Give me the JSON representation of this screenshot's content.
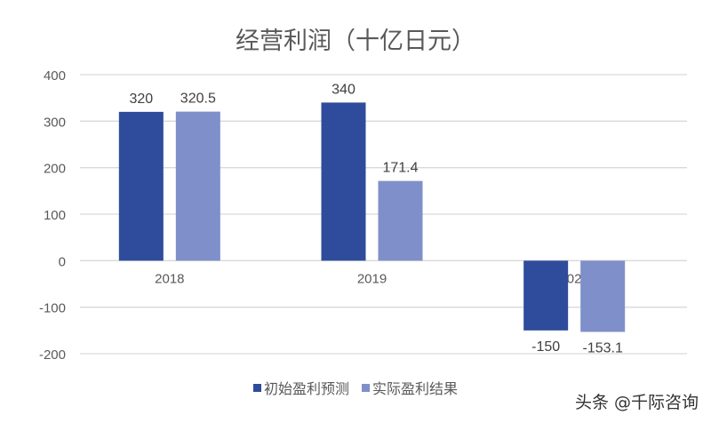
{
  "chart_data": {
    "type": "bar",
    "title": "经营利润（十亿日元）",
    "categories": [
      "2018",
      "2019",
      "2020"
    ],
    "series": [
      {
        "name": "初始盈利预测",
        "values": [
          320,
          340,
          -150
        ],
        "labels": [
          "320",
          "340",
          "-150"
        ],
        "color": "#2E4C9B"
      },
      {
        "name": "实际盈利结果",
        "values": [
          320.5,
          171.4,
          -153.1
        ],
        "labels": [
          "320.5",
          "171.4",
          "-153.1"
        ],
        "color": "#7F8FCA"
      }
    ],
    "ylim": [
      -200,
      400
    ],
    "yticks": [
      400,
      300,
      200,
      100,
      0,
      -100,
      -200
    ],
    "ytick_labels": [
      "400",
      "300",
      "200",
      "100",
      "0",
      "-100",
      "-200"
    ],
    "grid": true,
    "legend": "bottom",
    "xlabel": "",
    "ylabel": ""
  },
  "watermark": "头条 @千际咨询"
}
